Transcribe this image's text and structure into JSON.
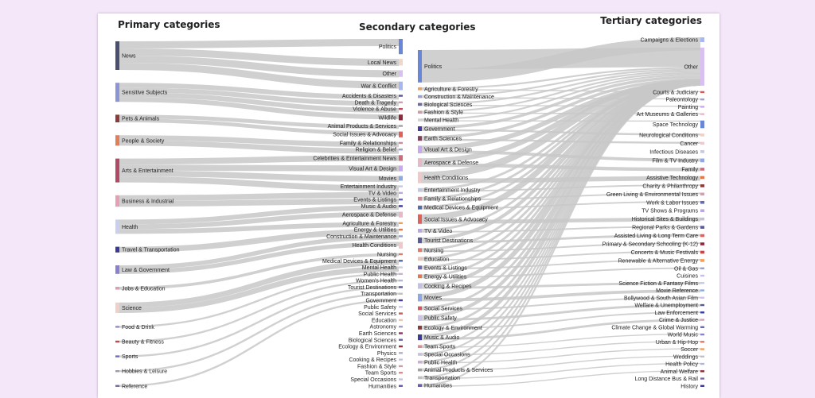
{
  "titles": {
    "primary": "Primary categories",
    "secondary": "Secondary categories",
    "tertiary": "Tertiary categories"
  },
  "colors": {
    "background": "#f3e7f9",
    "card": "#ffffff",
    "link": "#c8c8c8"
  },
  "primary_nodes": [
    {
      "label": "News",
      "color": "#4a5070",
      "size": 30
    },
    {
      "label": "Sensitive Subjects",
      "color": "#8c96d6",
      "size": 20
    },
    {
      "label": "Pets & Animals",
      "color": "#8e3a3a",
      "size": 8
    },
    {
      "label": "People & Society",
      "color": "#e0805a",
      "size": 11
    },
    {
      "label": "Arts & Entertainment",
      "color": "#b04a66",
      "size": 25
    },
    {
      "label": "Business & Industrial",
      "color": "#e6a0b4",
      "size": 12
    },
    {
      "label": "Health",
      "color": "#c8d0ee",
      "size": 15
    },
    {
      "label": "Travel & Transportation",
      "color": "#3a3a96",
      "size": 6
    },
    {
      "label": "Law & Government",
      "color": "#8a80d0",
      "size": 9
    },
    {
      "label": "Jobs & Education",
      "color": "#d8a0b0",
      "size": 3
    },
    {
      "label": "Science",
      "color": "#f0d0c8",
      "size": 11
    },
    {
      "label": "Food & Drink",
      "color": "#8e8ec8",
      "size": 2
    },
    {
      "label": "Beauty & Fitness",
      "color": "#c04a4a",
      "size": 2
    },
    {
      "label": "Sports",
      "color": "#6a6ac0",
      "size": 2
    },
    {
      "label": "Hobbies & Leisure",
      "color": "#9a9ab0",
      "size": 2
    },
    {
      "label": "Reference",
      "color": "#7a6aa8",
      "size": 2
    }
  ],
  "secondary_nodes": [
    {
      "label": "Politics",
      "color": "#6a86d8",
      "size": 16
    },
    {
      "label": "Local News",
      "color": "#f0d8c8",
      "size": 7
    },
    {
      "label": "Other",
      "color": "#d8c0f0",
      "size": 7
    },
    {
      "label": "War & Conflict",
      "color": "#a8b8ee",
      "size": 9
    },
    {
      "label": "Accidents & Disasters",
      "color": "#5a5a8a",
      "size": 2
    },
    {
      "label": "Death & Tragedy",
      "color": "#d0a0b0",
      "size": 2
    },
    {
      "label": "Violence & Abuse",
      "color": "#c04a5a",
      "size": 2
    },
    {
      "label": "Wildlife",
      "color": "#8e2a3a",
      "size": 6
    },
    {
      "label": "Animal Products & Services",
      "color": "#a0a0a0",
      "size": 2
    },
    {
      "label": "Social Issues & Advocacy",
      "color": "#e0605a",
      "size": 6
    },
    {
      "label": "Family & Relationships",
      "color": "#d08a9a",
      "size": 2
    },
    {
      "label": "Religion & Belief",
      "color": "#a0a0d8",
      "size": 2
    },
    {
      "label": "Celebrities & Entertainment News",
      "color": "#d06a7a",
      "size": 6
    },
    {
      "label": "Visual Art & Design",
      "color": "#c8a8ee",
      "size": 6
    },
    {
      "label": "Movies",
      "color": "#8ea8e0",
      "size": 5
    },
    {
      "label": "Entertainment Industry",
      "color": "#c0c8e8",
      "size": 2
    },
    {
      "label": "TV & Video",
      "color": "#b8a8e0",
      "size": 2
    },
    {
      "label": "Events & Listings",
      "color": "#6a6ab0",
      "size": 2
    },
    {
      "label": "Music & Audio",
      "color": "#3a3aa0",
      "size": 2
    },
    {
      "label": "Aerospace & Defense",
      "color": "#e8b8c8",
      "size": 6
    },
    {
      "label": "Agriculture & Forestry",
      "color": "#f0a060",
      "size": 2
    },
    {
      "label": "Energy & Utilities",
      "color": "#e07a4a",
      "size": 2
    },
    {
      "label": "Construction & Maintenance",
      "color": "#9aa0c8",
      "size": 2
    },
    {
      "label": "Health Conditions",
      "color": "#f0c8c8",
      "size": 7
    },
    {
      "label": "Nursing",
      "color": "#e07a6a",
      "size": 2
    },
    {
      "label": "Medical Devices & Equipment",
      "color": "#5a6ab0",
      "size": 2
    },
    {
      "label": "Mental Health",
      "color": "#d0d0d8",
      "size": 2
    },
    {
      "label": "Public Health",
      "color": "#c8b0d8",
      "size": 2
    },
    {
      "label": "Women's Health",
      "color": "#b0b8d0",
      "size": 2
    },
    {
      "label": "Tourist Destinations",
      "color": "#5a5a9a",
      "size": 2
    },
    {
      "label": "Transportation",
      "color": "#c0c0c0",
      "size": 2
    },
    {
      "label": "Government",
      "color": "#4a3aa0",
      "size": 2
    },
    {
      "label": "Public Safety",
      "color": "#d0c0ee",
      "size": 2
    },
    {
      "label": "Social Services",
      "color": "#d05a5a",
      "size": 2
    },
    {
      "label": "Education",
      "color": "#f0c0b0",
      "size": 2
    },
    {
      "label": "Astronomy",
      "color": "#a0a0c0",
      "size": 2
    },
    {
      "label": "Earth Sciences",
      "color": "#8a3a5a",
      "size": 2
    },
    {
      "label": "Biological Sciences",
      "color": "#6a6aa0",
      "size": 2
    },
    {
      "label": "Ecology & Environment",
      "color": "#8e3a3a",
      "size": 2
    },
    {
      "label": "Physics",
      "color": "#b0b0c8",
      "size": 2
    },
    {
      "label": "Cooking & Recipes",
      "color": "#c0c0e8",
      "size": 2
    },
    {
      "label": "Fashion & Style",
      "color": "#d09aa8",
      "size": 2
    },
    {
      "label": "Team Sports",
      "color": "#e08a8a",
      "size": 2
    },
    {
      "label": "Special Occasions",
      "color": "#c8c0e0",
      "size": 2
    },
    {
      "label": "Humanities",
      "color": "#6a5ab0",
      "size": 2
    }
  ],
  "middle_nodes": [
    {
      "label": "Politics",
      "color": "#6a86d8",
      "size": 34
    },
    {
      "label": "Agriculture & Forestry",
      "color": "#f0a060",
      "size": 3
    },
    {
      "label": "Construction & Maintenance",
      "color": "#9aa0c8",
      "size": 3
    },
    {
      "label": "Biological Sciences",
      "color": "#6a6aa0",
      "size": 3
    },
    {
      "label": "Fashion & Style",
      "color": "#d09aa8",
      "size": 3
    },
    {
      "label": "Mental Health",
      "color": "#d0d0d8",
      "size": 3
    },
    {
      "label": "Government",
      "color": "#4a3aa0",
      "size": 5
    },
    {
      "label": "Earth Sciences",
      "color": "#8a3a5a",
      "size": 5
    },
    {
      "label": "Visual Art & Design",
      "color": "#c8a8ee",
      "size": 8
    },
    {
      "label": "Aerospace & Defense",
      "color": "#e8b8c8",
      "size": 9
    },
    {
      "label": "Health Conditions",
      "color": "#f0c8c8",
      "size": 12
    },
    {
      "label": "Entertainment Industry",
      "color": "#c0c8e8",
      "size": 4
    },
    {
      "label": "Family & Relationships",
      "color": "#d08a9a",
      "size": 4
    },
    {
      "label": "Medical Devices & Equipment",
      "color": "#5a6ab0",
      "size": 4
    },
    {
      "label": "Social Issues & Advocacy",
      "color": "#e0605a",
      "size": 10
    },
    {
      "label": "TV & Video",
      "color": "#b8a8e0",
      "size": 4
    },
    {
      "label": "Tourist Destinations",
      "color": "#5a5a9a",
      "size": 6
    },
    {
      "label": "Nursing",
      "color": "#e07a6a",
      "size": 4
    },
    {
      "label": "Education",
      "color": "#f0c0b0",
      "size": 4
    },
    {
      "label": "Events & Listings",
      "color": "#6a6ab0",
      "size": 4
    },
    {
      "label": "Energy & Utilities",
      "color": "#e07a4a",
      "size": 4
    },
    {
      "label": "Cooking & Recipes",
      "color": "#c0c0e8",
      "size": 6
    },
    {
      "label": "Movies",
      "color": "#8ea8e0",
      "size": 8
    },
    {
      "label": "Social Services",
      "color": "#d05a5a",
      "size": 4
    },
    {
      "label": "Public Safety",
      "color": "#d0c0ee",
      "size": 6
    },
    {
      "label": "Ecology & Environment",
      "color": "#8e3a3a",
      "size": 4
    },
    {
      "label": "Music & Audio",
      "color": "#3a3aa0",
      "size": 6
    },
    {
      "label": "Team Sports",
      "color": "#e08a8a",
      "size": 3
    },
    {
      "label": "Special Occasions",
      "color": "#c8c0e0",
      "size": 3
    },
    {
      "label": "Public Health",
      "color": "#c8b0d8",
      "size": 3
    },
    {
      "label": "Animal Products & Services",
      "color": "#a0a0a0",
      "size": 3
    },
    {
      "label": "Transportation",
      "color": "#c0c0c0",
      "size": 3
    },
    {
      "label": "Humanities",
      "color": "#6a5ab0",
      "size": 3
    }
  ],
  "tertiary_nodes": [
    {
      "label": "Campaigns & Elections",
      "color": "#a8b8ee",
      "size": 5
    },
    {
      "label": "Other",
      "color": "#d8c0f0",
      "size": 40
    },
    {
      "label": "Courts & Judiciary",
      "color": "#d05a5a",
      "size": 2
    },
    {
      "label": "Paleontology",
      "color": "#a0a0c0",
      "size": 2
    },
    {
      "label": "Painting",
      "color": "#c8a8ee",
      "size": 2
    },
    {
      "label": "Art Museums & Galleries",
      "color": "#e8b8c8",
      "size": 2
    },
    {
      "label": "Space Technology",
      "color": "#6a86d8",
      "size": 8
    },
    {
      "label": "Neurological Conditions",
      "color": "#f0d0c8",
      "size": 3
    },
    {
      "label": "Cancer",
      "color": "#f0c8d0",
      "size": 3
    },
    {
      "label": "Infectious Diseases",
      "color": "#c8c8e0",
      "size": 3
    },
    {
      "label": "Film & TV Industry",
      "color": "#8ea8e0",
      "size": 4
    },
    {
      "label": "Family",
      "color": "#d06a7a",
      "size": 3
    },
    {
      "label": "Assistive Technology",
      "color": "#e07a4a",
      "size": 3
    },
    {
      "label": "Charity & Philanthropy",
      "color": "#8e3a3a",
      "size": 3
    },
    {
      "label": "Green Living & Environmental Issues",
      "color": "#d0a0b0",
      "size": 3
    },
    {
      "label": "Work & Labor Issues",
      "color": "#6a6ab0",
      "size": 3
    },
    {
      "label": "TV Shows & Programs",
      "color": "#b8a8e0",
      "size": 3
    },
    {
      "label": "Historical Sites & Buildings",
      "color": "#c0c0d0",
      "size": 3
    },
    {
      "label": "Regional Parks & Gardens",
      "color": "#5a5a9a",
      "size": 3
    },
    {
      "label": "Assisted Living & Long Term Care",
      "color": "#e0605a",
      "size": 3
    },
    {
      "label": "Primary & Secondary Schooling (K-12)",
      "color": "#8e2a3a",
      "size": 3
    },
    {
      "label": "Concerts & Music Festivals",
      "color": "#c04a4a",
      "size": 3
    },
    {
      "label": "Renewable & Alternative Energy",
      "color": "#f0a060",
      "size": 3
    },
    {
      "label": "Oil & Gas",
      "color": "#9aa0c8",
      "size": 2
    },
    {
      "label": "Cuisines",
      "color": "#c0c0e8",
      "size": 2
    },
    {
      "label": "Science Fiction & Fantasy Films",
      "color": "#c8c8e8",
      "size": 2
    },
    {
      "label": "Movie Reference",
      "color": "#8ea8e0",
      "size": 2
    },
    {
      "label": "Bollywood & South Asian Film",
      "color": "#d0c0ee",
      "size": 2
    },
    {
      "label": "Welfare & Unemployment",
      "color": "#5a5a8a",
      "size": 2
    },
    {
      "label": "Law Enforcement",
      "color": "#3a3aa0",
      "size": 2
    },
    {
      "label": "Crime & Justice",
      "color": "#d0a0b0",
      "size": 2
    },
    {
      "label": "Climate Change & Global Warming",
      "color": "#6a6ab0",
      "size": 2
    },
    {
      "label": "World Music",
      "color": "#8a80d0",
      "size": 2
    },
    {
      "label": "Urban & Hip-Hop",
      "color": "#e07a6a",
      "size": 2
    },
    {
      "label": "Soccer",
      "color": "#f0a060",
      "size": 2
    },
    {
      "label": "Weddings",
      "color": "#c0c0c0",
      "size": 2
    },
    {
      "label": "Health Policy",
      "color": "#b0b8d0",
      "size": 2
    },
    {
      "label": "Animal Welfare",
      "color": "#8e2a3a",
      "size": 2
    },
    {
      "label": "Long Distance Bus & Rail",
      "color": "#7a6aa8",
      "size": 2
    },
    {
      "label": "History",
      "color": "#3a3a96",
      "size": 2
    }
  ]
}
